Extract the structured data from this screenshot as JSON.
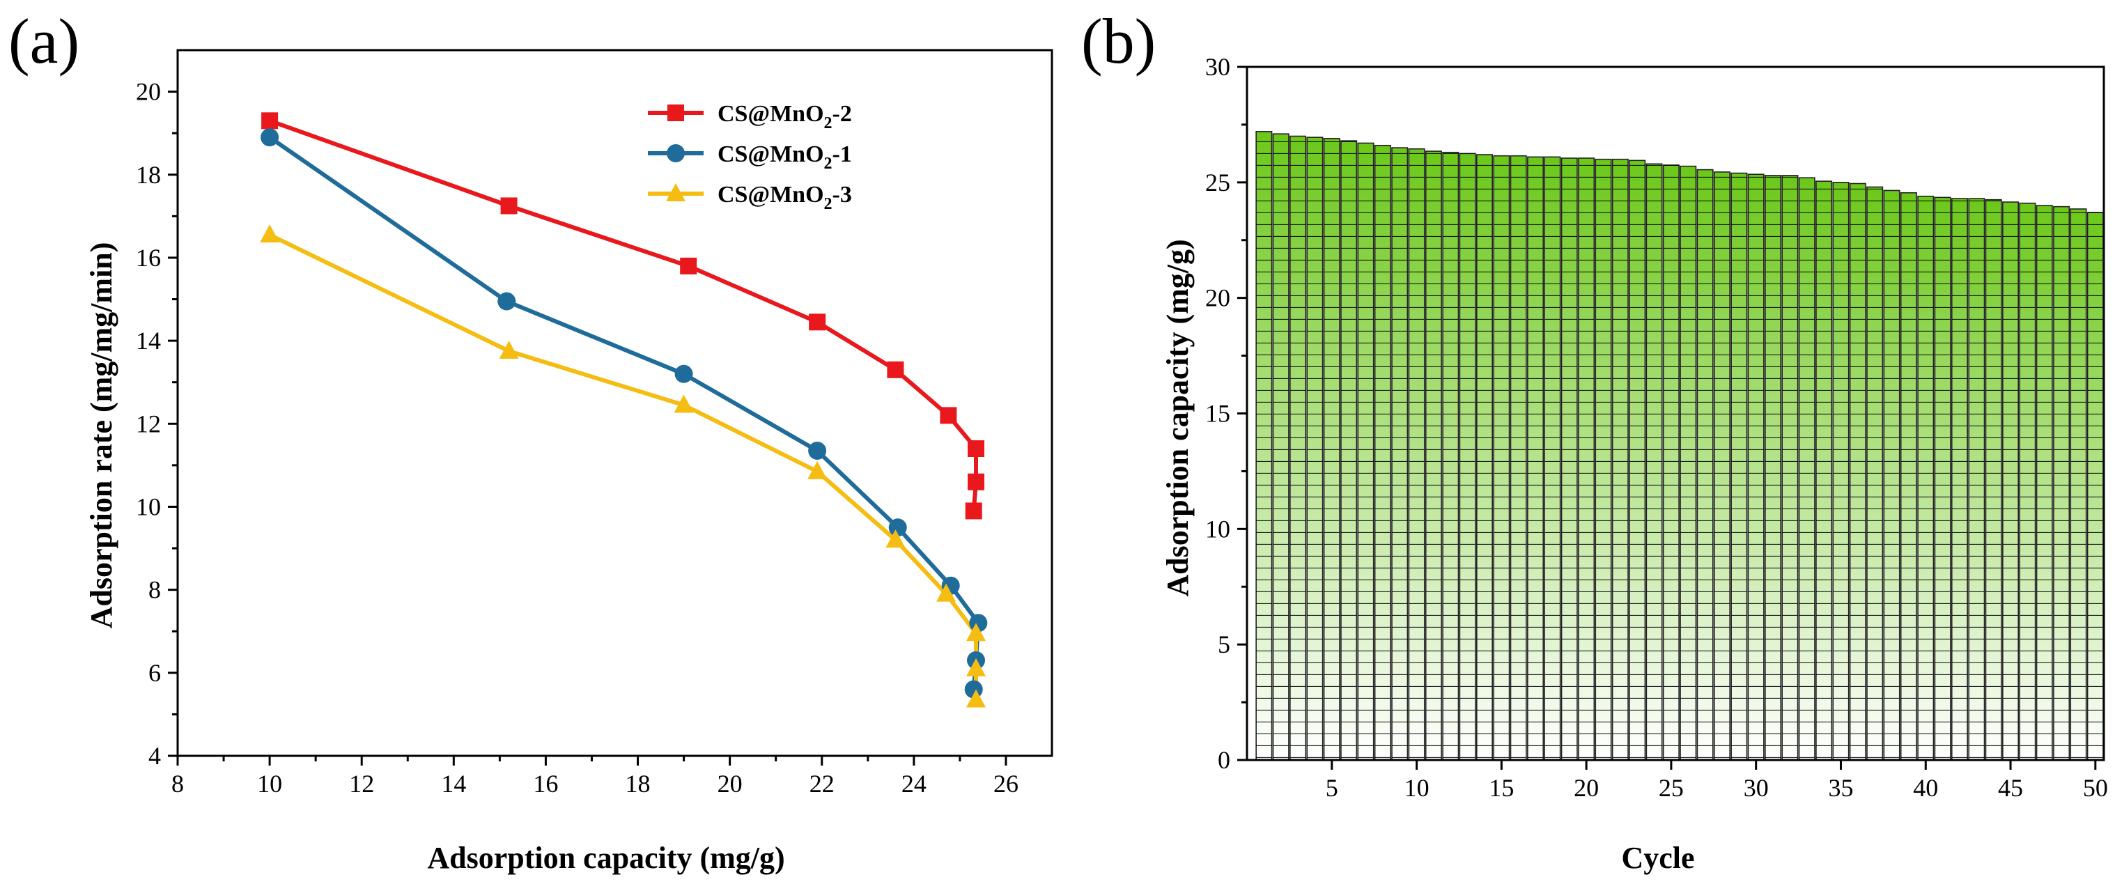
{
  "chart_data": [
    {
      "panel_label": "(a)",
      "type": "line",
      "xlabel": "Adsorption capacity (mg/g)",
      "ylabel": "Adsorption rate (mg/mg/min)",
      "xlim": [
        8,
        27
      ],
      "ylim": [
        4,
        21
      ],
      "xticks": [
        8,
        10,
        12,
        14,
        16,
        18,
        20,
        22,
        24,
        26
      ],
      "yticks": [
        4,
        6,
        8,
        10,
        12,
        14,
        16,
        18,
        20
      ],
      "legend_position": "top-right",
      "series": [
        {
          "name": "CS@MnO",
          "name_sub": "2",
          "name_suffix": "-2",
          "color": "#e8181d",
          "marker": "square",
          "x": [
            10.0,
            15.2,
            19.1,
            21.9,
            23.6,
            24.75,
            25.35,
            25.35,
            25.3
          ],
          "y": [
            19.3,
            17.25,
            15.8,
            14.45,
            13.3,
            12.2,
            11.4,
            10.6,
            9.9
          ]
        },
        {
          "name": "CS@MnO",
          "name_sub": "2",
          "name_suffix": "-1",
          "color": "#1f6b9a",
          "marker": "circle",
          "x": [
            10.0,
            15.15,
            19.0,
            21.9,
            23.65,
            24.8,
            25.4,
            25.35,
            25.3
          ],
          "y": [
            18.9,
            14.95,
            13.2,
            11.35,
            9.5,
            8.1,
            7.2,
            6.3,
            5.6
          ]
        },
        {
          "name": "CS@MnO",
          "name_sub": "2",
          "name_suffix": "-3",
          "color": "#f5bd12",
          "marker": "triangle",
          "x": [
            10.0,
            15.2,
            19.0,
            21.9,
            23.6,
            24.7,
            25.35,
            25.35,
            25.35
          ],
          "y": [
            16.55,
            13.75,
            12.45,
            10.85,
            9.2,
            7.9,
            6.95,
            6.1,
            5.35
          ]
        }
      ]
    },
    {
      "panel_label": "(b)",
      "type": "bar",
      "xlabel": "Cycle",
      "ylabel": "Adsorption capacity (mg/g)",
      "xlim": [
        0,
        50.5
      ],
      "ylim": [
        0,
        30
      ],
      "xticks": [
        5,
        10,
        15,
        20,
        25,
        30,
        35,
        40,
        45,
        50
      ],
      "yticks": [
        0,
        5,
        10,
        15,
        20,
        25,
        30
      ],
      "bar_color_top": "#6cc81a",
      "bar_color_bottom": "#ffffff",
      "categories": [
        1,
        2,
        3,
        4,
        5,
        6,
        7,
        8,
        9,
        10,
        11,
        12,
        13,
        14,
        15,
        16,
        17,
        18,
        19,
        20,
        21,
        22,
        23,
        24,
        25,
        26,
        27,
        28,
        29,
        30,
        31,
        32,
        33,
        34,
        35,
        36,
        37,
        38,
        39,
        40,
        41,
        42,
        43,
        44,
        45,
        46,
        47,
        48,
        49,
        50
      ],
      "values": [
        27.2,
        27.1,
        27.0,
        26.95,
        26.9,
        26.8,
        26.7,
        26.6,
        26.5,
        26.45,
        26.35,
        26.3,
        26.25,
        26.2,
        26.15,
        26.15,
        26.1,
        26.1,
        26.05,
        26.05,
        26.0,
        26.0,
        25.95,
        25.8,
        25.75,
        25.7,
        25.55,
        25.45,
        25.4,
        25.35,
        25.3,
        25.3,
        25.2,
        25.05,
        25.0,
        24.95,
        24.8,
        24.65,
        24.55,
        24.4,
        24.35,
        24.3,
        24.3,
        24.25,
        24.15,
        24.1,
        24.0,
        23.95,
        23.85,
        23.7
      ]
    }
  ]
}
